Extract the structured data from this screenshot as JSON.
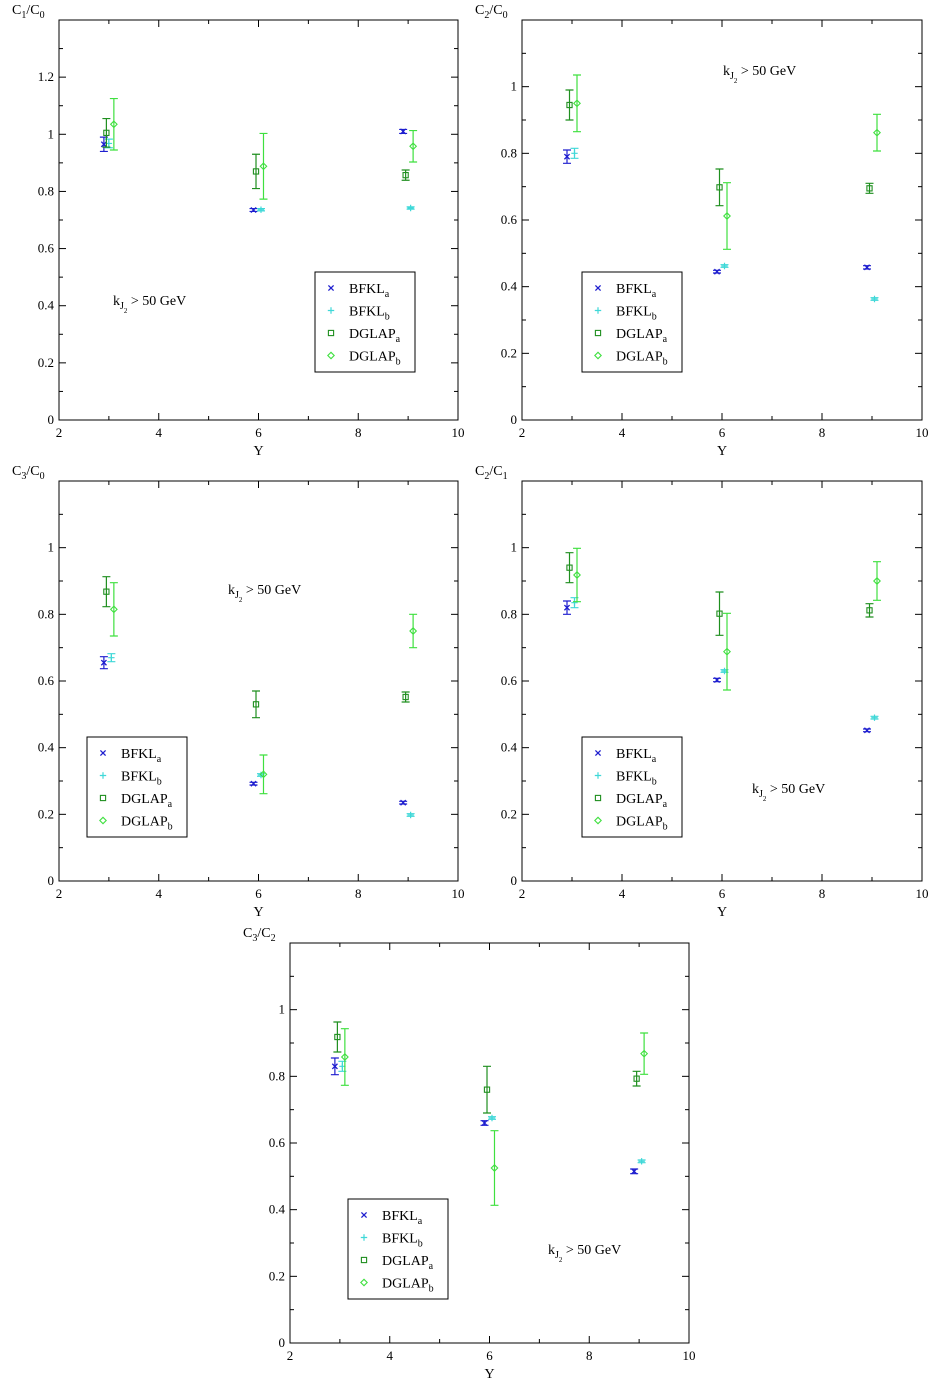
{
  "colors": {
    "BFKL_a": "#1f1fcf",
    "BFKL_b": "#3fd8d8",
    "DGLAP_a": "#1f8f1f",
    "DGLAP_b": "#3fe03f"
  },
  "legend_entries": [
    {
      "key": "BFKL_a",
      "base": "BFKL",
      "sub": "a",
      "marker": "x"
    },
    {
      "key": "BFKL_b",
      "base": "BFKL",
      "sub": "b",
      "marker": "plus"
    },
    {
      "key": "DGLAP_a",
      "base": "DGLAP",
      "sub": "a",
      "marker": "square"
    },
    {
      "key": "DGLAP_b",
      "base": "DGLAP",
      "sub": "b",
      "marker": "diamond"
    }
  ],
  "chart_data": [
    {
      "type": "scatter",
      "ylabel": {
        "base1": "C",
        "sub1": "1",
        "slash": "/",
        "base2": "C",
        "sub2": "0"
      },
      "xlabel": "Y",
      "xlim": [
        2,
        10
      ],
      "ylim": [
        0,
        1.4
      ],
      "xticks": [
        "2",
        "4",
        "6",
        "8",
        "10"
      ],
      "yticks": [
        "0",
        "0.2",
        "0.4",
        "0.6",
        "0.8",
        "1",
        "1.2"
      ],
      "annotation": {
        "k": "k",
        "sub1": "J",
        "sub2": "2",
        "rest": " > 50 GeV"
      },
      "series": [
        {
          "key": "BFKL_a",
          "x": [
            2.9,
            5.9,
            8.9
          ],
          "y": [
            0.965,
            0.735,
            1.01
          ],
          "err": [
            0.025,
            0.005,
            0.007
          ]
        },
        {
          "key": "BFKL_b",
          "x": [
            3.0,
            6.05,
            9.05
          ],
          "y": [
            0.968,
            0.736,
            0.742
          ],
          "err": [
            0.015,
            0.004,
            0.004
          ]
        },
        {
          "key": "DGLAP_a",
          "x": [
            2.95,
            5.95,
            8.95
          ],
          "y": [
            1.005,
            0.87,
            0.857
          ],
          "err": [
            0.05,
            0.06,
            0.018
          ]
        },
        {
          "key": "DGLAP_b",
          "x": [
            3.1,
            6.1,
            9.1
          ],
          "y": [
            1.035,
            0.888,
            0.958
          ],
          "err": [
            0.09,
            0.115,
            0.055
          ]
        }
      ]
    },
    {
      "type": "scatter",
      "ylabel": {
        "base1": "C",
        "sub1": "2",
        "slash": "/",
        "base2": "C",
        "sub2": "0"
      },
      "xlabel": "Y",
      "xlim": [
        2,
        10
      ],
      "ylim": [
        0,
        1.2
      ],
      "xticks": [
        "2",
        "4",
        "6",
        "8",
        "10"
      ],
      "yticks": [
        "0",
        "0.2",
        "0.4",
        "0.6",
        "0.8",
        "1"
      ],
      "annotation": {
        "k": "k",
        "sub1": "J",
        "sub2": "2",
        "rest": " > 50 GeV"
      },
      "series": [
        {
          "key": "BFKL_a",
          "x": [
            2.9,
            5.9,
            8.9
          ],
          "y": [
            0.79,
            0.445,
            0.458
          ],
          "err": [
            0.02,
            0.004,
            0.005
          ]
        },
        {
          "key": "BFKL_b",
          "x": [
            3.05,
            6.05,
            9.05
          ],
          "y": [
            0.8,
            0.462,
            0.363
          ],
          "err": [
            0.015,
            0.004,
            0.004
          ]
        },
        {
          "key": "DGLAP_a",
          "x": [
            2.95,
            5.95,
            8.95
          ],
          "y": [
            0.945,
            0.698,
            0.695
          ],
          "err": [
            0.045,
            0.055,
            0.015
          ]
        },
        {
          "key": "DGLAP_b",
          "x": [
            3.1,
            6.1,
            9.1
          ],
          "y": [
            0.95,
            0.612,
            0.862
          ],
          "err": [
            0.085,
            0.1,
            0.055
          ]
        }
      ]
    },
    {
      "type": "scatter",
      "ylabel": {
        "base1": "C",
        "sub1": "3",
        "slash": "/",
        "base2": "C",
        "sub2": "0"
      },
      "xlabel": "Y",
      "xlim": [
        2,
        10
      ],
      "ylim": [
        0,
        1.2
      ],
      "xticks": [
        "2",
        "4",
        "6",
        "8",
        "10"
      ],
      "yticks": [
        "0",
        "0.2",
        "0.4",
        "0.6",
        "0.8",
        "1"
      ],
      "annotation": {
        "k": "k",
        "sub1": "J",
        "sub2": "2",
        "rest": " > 50 GeV"
      },
      "series": [
        {
          "key": "BFKL_a",
          "x": [
            2.9,
            5.9,
            8.9
          ],
          "y": [
            0.655,
            0.292,
            0.235
          ],
          "err": [
            0.018,
            0.004,
            0.004
          ]
        },
        {
          "key": "BFKL_b",
          "x": [
            3.05,
            6.05,
            9.05
          ],
          "y": [
            0.67,
            0.318,
            0.198
          ],
          "err": [
            0.012,
            0.004,
            0.004
          ]
        },
        {
          "key": "DGLAP_a",
          "x": [
            2.95,
            5.95,
            8.95
          ],
          "y": [
            0.868,
            0.53,
            0.552
          ],
          "err": [
            0.045,
            0.04,
            0.015
          ]
        },
        {
          "key": "DGLAP_b",
          "x": [
            3.1,
            6.1,
            9.1
          ],
          "y": [
            0.815,
            0.32,
            0.75
          ],
          "err": [
            0.08,
            0.058,
            0.05
          ]
        }
      ]
    },
    {
      "type": "scatter",
      "ylabel": {
        "base1": "C",
        "sub1": "2",
        "slash": "/",
        "base2": "C",
        "sub2": "1"
      },
      "xlabel": "Y",
      "xlim": [
        2,
        10
      ],
      "ylim": [
        0,
        1.2
      ],
      "xticks": [
        "2",
        "4",
        "6",
        "8",
        "10"
      ],
      "yticks": [
        "0",
        "0.2",
        "0.4",
        "0.6",
        "0.8",
        "1"
      ],
      "annotation": {
        "k": "k",
        "sub1": "J",
        "sub2": "2",
        "rest": " > 50 GeV"
      },
      "series": [
        {
          "key": "BFKL_a",
          "x": [
            2.9,
            5.9,
            8.9
          ],
          "y": [
            0.82,
            0.603,
            0.452
          ],
          "err": [
            0.02,
            0.005,
            0.004
          ]
        },
        {
          "key": "BFKL_b",
          "x": [
            3.05,
            6.05,
            9.05
          ],
          "y": [
            0.835,
            0.63,
            0.49
          ],
          "err": [
            0.015,
            0.004,
            0.004
          ]
        },
        {
          "key": "DGLAP_a",
          "x": [
            2.95,
            5.95,
            8.95
          ],
          "y": [
            0.94,
            0.802,
            0.812
          ],
          "err": [
            0.045,
            0.065,
            0.02
          ]
        },
        {
          "key": "DGLAP_b",
          "x": [
            3.1,
            6.1,
            9.1
          ],
          "y": [
            0.918,
            0.688,
            0.9
          ],
          "err": [
            0.08,
            0.115,
            0.058
          ]
        }
      ]
    },
    {
      "type": "scatter",
      "ylabel": {
        "base1": "C",
        "sub1": "3",
        "slash": "/",
        "base2": "C",
        "sub2": "2"
      },
      "xlabel": "Y",
      "xlim": [
        2,
        10
      ],
      "ylim": [
        0,
        1.2
      ],
      "xticks": [
        "2",
        "4",
        "6",
        "8",
        "10"
      ],
      "yticks": [
        "0",
        "0.2",
        "0.4",
        "0.6",
        "0.8",
        "1"
      ],
      "annotation": {
        "k": "k",
        "sub1": "J",
        "sub2": "2",
        "rest": " > 50 GeV"
      },
      "series": [
        {
          "key": "BFKL_a",
          "x": [
            2.9,
            5.9,
            8.9
          ],
          "y": [
            0.83,
            0.66,
            0.515
          ],
          "err": [
            0.025,
            0.007,
            0.007
          ]
        },
        {
          "key": "BFKL_b",
          "x": [
            3.05,
            6.05,
            9.05
          ],
          "y": [
            0.83,
            0.675,
            0.545
          ],
          "err": [
            0.015,
            0.004,
            0.004
          ]
        },
        {
          "key": "DGLAP_a",
          "x": [
            2.95,
            5.95,
            8.95
          ],
          "y": [
            0.918,
            0.76,
            0.793
          ],
          "err": [
            0.045,
            0.07,
            0.022
          ]
        },
        {
          "key": "DGLAP_b",
          "x": [
            3.1,
            6.1,
            9.1
          ],
          "y": [
            0.858,
            0.525,
            0.868
          ],
          "err": [
            0.085,
            0.112,
            0.062
          ]
        }
      ]
    }
  ]
}
